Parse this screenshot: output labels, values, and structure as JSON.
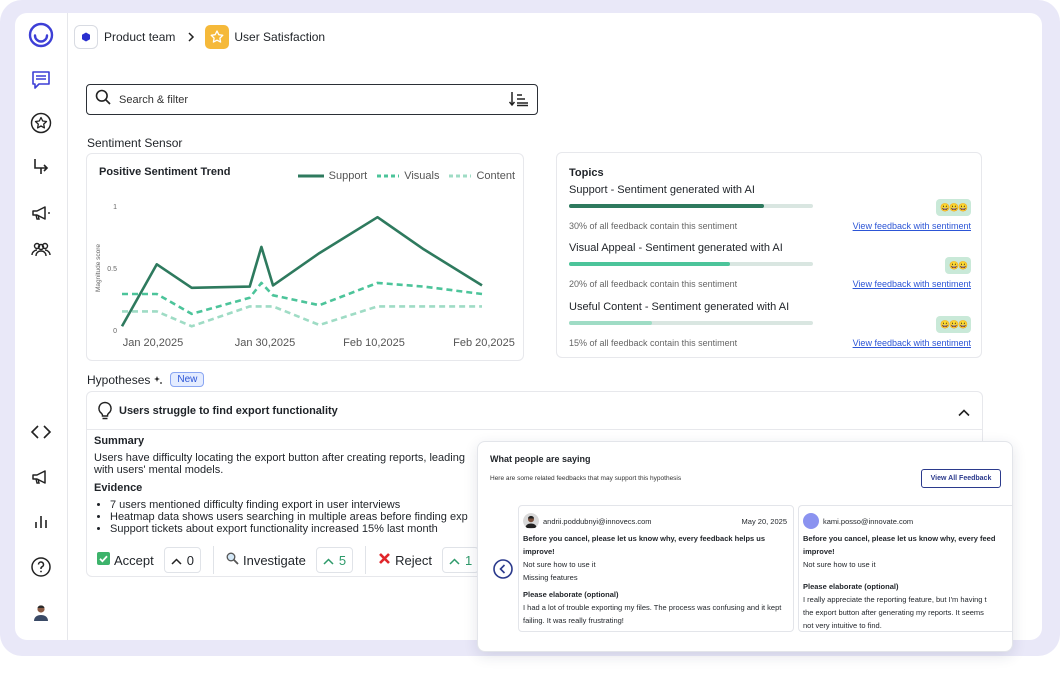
{
  "breadcrumb": {
    "team": "Product team",
    "page": "User Satisfaction"
  },
  "search": {
    "placeholder": "Search & filter"
  },
  "sentiment": {
    "label": "Sentiment Sensor",
    "chart_title": "Positive Sentiment Trend",
    "legend": [
      "Support",
      "Visuals",
      "Content"
    ]
  },
  "chart_data": {
    "type": "line",
    "title": "Positive Sentiment Trend",
    "xlabel": "",
    "ylabel": "Magnitude score",
    "x_ticks": [
      "Jan 20,2025",
      "Jan 30,2025",
      "Feb 10,2025",
      "Feb 20,2025"
    ],
    "y_ticks": [
      "0",
      "0.5",
      "1"
    ],
    "ylim": [
      0,
      1
    ],
    "x": [
      "2025-01-20",
      "2025-01-23",
      "2025-01-26",
      "2025-01-31",
      "2025-02-01",
      "2025-02-02",
      "2025-02-06",
      "2025-02-11",
      "2025-02-15",
      "2025-02-20"
    ],
    "series": [
      {
        "name": "Support",
        "color": "#2e7a5e",
        "dash": "solid",
        "values": [
          0.03,
          0.53,
          0.34,
          0.35,
          0.67,
          0.36,
          0.62,
          0.91,
          0.65,
          0.36
        ]
      },
      {
        "name": "Visuals",
        "color": "#4cc49a",
        "dash": "dashed",
        "values": [
          0.29,
          0.29,
          0.13,
          0.26,
          0.38,
          0.28,
          0.2,
          0.38,
          0.35,
          0.29
        ]
      },
      {
        "name": "Content",
        "color": "#9fdcc5",
        "dash": "dashed",
        "values": [
          0.15,
          0.15,
          0.03,
          0.19,
          0.19,
          0.19,
          0.04,
          0.19,
          0.19,
          0.19
        ]
      }
    ]
  },
  "topics": {
    "title": "Topics",
    "items": [
      {
        "name": "Support - Sentiment generated with AI",
        "share": "30% of all feedback contain this sentiment",
        "link": "View feedback with sentiment",
        "fill": 0.8,
        "color": "#2e7a5e",
        "emojis": "😀😀😀"
      },
      {
        "name": "Visual Appeal - Sentiment generated with AI",
        "share": "20% of all feedback contain this sentiment",
        "link": "View feedback with sentiment",
        "fill": 0.66,
        "color": "#4cc49a",
        "emojis": "😀😀"
      },
      {
        "name": "Useful Content - Sentiment generated with AI",
        "share": "15% of all feedback contain this sentiment",
        "link": "View feedback with sentiment",
        "fill": 0.34,
        "color": "#9fdcc5",
        "emojis": "😀😀😀"
      }
    ]
  },
  "hypotheses": {
    "label": "Hypotheses",
    "badge": "New",
    "title": "Users struggle to find export functionality",
    "summary_label": "Summary",
    "summary_line1": "Users have difficulty locating the export button after creating reports, leading",
    "summary_line2": "with users' mental models.",
    "evidence_label": "Evidence",
    "evidence": [
      "7 users mentioned difficulty finding export in user interviews",
      "Heatmap data shows users searching in multiple areas before finding exp",
      "Support tickets about export functionality increased 15% last month"
    ],
    "actions": {
      "accept": "Accept",
      "accept_count": "0",
      "investigate": "Investigate",
      "investigate_count": "5",
      "reject": "Reject",
      "reject_count": "1"
    }
  },
  "popup": {
    "title": "What people are saying",
    "subtitle": "Here are some related feedbacks that may support this hypothesis",
    "button": "View All Feedback",
    "feedback": [
      {
        "email": "andrii.poddubnyi@innovecs.com",
        "date": "May 20, 2025",
        "q1": "Before you cancel, please let us know why, every feedback helps us improve!",
        "a1_1": "Not sure how to use it",
        "a1_2": "Missing features",
        "q2": "Please elaborate (optional)",
        "a2": "I had a lot of trouble exporting my files. The process was confusing and it kept failing. It was really frustrating!"
      },
      {
        "email": "kami.posso@innovate.com",
        "date": "",
        "q1": "Before you cancel, please let us know why, every feed",
        "q1b": "improve!",
        "a1_1": "Not sure how to use it",
        "q2": "Please elaborate (optional)",
        "a2_1": "I really appreciate the reporting feature, but I'm having t",
        "a2_2": "the export button after generating my reports. It seems",
        "a2_3": "not very intuitive to find."
      }
    ]
  }
}
